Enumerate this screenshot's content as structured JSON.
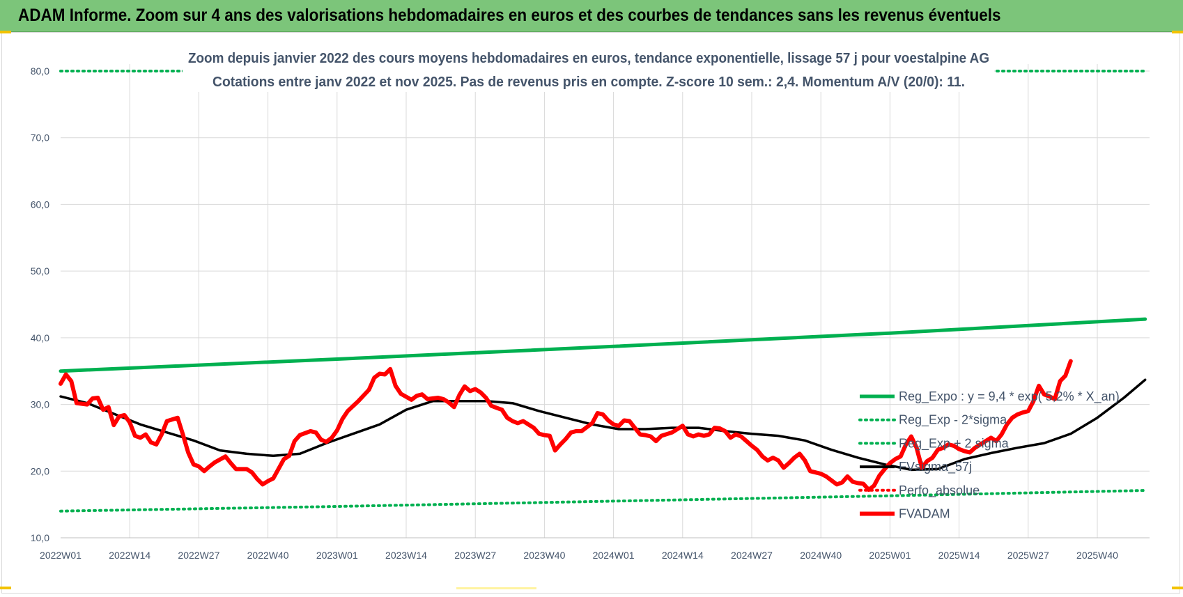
{
  "header": {
    "title": "ADAM Informe. Zoom sur 4 ans des valorisations hebdomadaires en euros et des courbes de tendances sans les revenus éventuels"
  },
  "colors": {
    "header_bg": "#7cc57a",
    "reg_expo": "#00b050",
    "price": "#ff0000",
    "smooth": "#000000",
    "text": "#44546a",
    "grid": "#d9d9d9"
  },
  "chart_data": {
    "type": "line",
    "title_lines": [
      "Zoom depuis janvier 2022 des cours moyens hebdomadaires en euros, tendance exponentielle, lissage 57 j pour voestalpine AG",
      "Cotations entre janv 2022 et nov 2025. Pas de revenus pris en compte. Z-score 10 sem.: 2,4. Momentum A/V (20/0): 11."
    ],
    "ylim": [
      10,
      80
    ],
    "yticks": [
      "10,0",
      "20,0",
      "30,0",
      "40,0",
      "50,0",
      "60,0",
      "70,0",
      "80,0"
    ],
    "xticks": [
      "2022W01",
      "2022W14",
      "2022W27",
      "2022W40",
      "2023W01",
      "2023W14",
      "2023W27",
      "2023W40",
      "2024W01",
      "2024W14",
      "2024W27",
      "2024W40",
      "2025W01",
      "2025W14",
      "2025W27",
      "2025W40"
    ],
    "x_range_weeks": [
      0,
      204
    ],
    "grid": true,
    "legend_position": "right",
    "series": [
      {
        "name": "Reg_Expo : y = 9,4 * exp( 5,2% * X_an)",
        "style": "solid",
        "color": "#00b050",
        "points": [
          [
            0,
            35.0
          ],
          [
            52,
            36.8
          ],
          [
            104,
            38.7
          ],
          [
            156,
            40.7
          ],
          [
            204,
            42.8
          ]
        ]
      },
      {
        "name": "Reg_Exp - 2*sigma",
        "style": "dotted",
        "color": "#00b050",
        "points": [
          [
            0,
            14.0
          ],
          [
            52,
            14.7
          ],
          [
            104,
            15.5
          ],
          [
            156,
            16.3
          ],
          [
            204,
            17.1
          ]
        ]
      },
      {
        "name": "Reg_Exp + 2 sigma",
        "style": "dotted",
        "color": "#00b050",
        "points": [
          [
            0,
            80.0
          ],
          [
            23,
            80.0
          ],
          [
            176,
            80.0
          ],
          [
            204,
            80.0
          ]
        ]
      },
      {
        "name": "FVsigma_57j",
        "style": "solid",
        "color": "#000000",
        "points": [
          [
            0,
            31.2
          ],
          [
            5,
            30.2
          ],
          [
            10,
            28.6
          ],
          [
            15,
            27.0
          ],
          [
            20,
            25.8
          ],
          [
            25,
            24.6
          ],
          [
            30,
            23.1
          ],
          [
            35,
            22.6
          ],
          [
            40,
            22.3
          ],
          [
            45,
            22.6
          ],
          [
            50,
            24.2
          ],
          [
            55,
            25.6
          ],
          [
            60,
            27.0
          ],
          [
            65,
            29.2
          ],
          [
            70,
            30.5
          ],
          [
            75,
            30.5
          ],
          [
            80,
            30.5
          ],
          [
            85,
            30.2
          ],
          [
            90,
            29.0
          ],
          [
            95,
            28.0
          ],
          [
            100,
            27.0
          ],
          [
            105,
            26.3
          ],
          [
            110,
            26.3
          ],
          [
            115,
            26.5
          ],
          [
            120,
            26.5
          ],
          [
            125,
            26.0
          ],
          [
            130,
            25.6
          ],
          [
            135,
            25.3
          ],
          [
            140,
            24.6
          ],
          [
            145,
            23.2
          ],
          [
            150,
            22.0
          ],
          [
            155,
            21.0
          ],
          [
            160,
            20.2
          ],
          [
            165,
            20.3
          ],
          [
            170,
            21.8
          ],
          [
            175,
            22.7
          ],
          [
            180,
            23.5
          ],
          [
            185,
            24.2
          ],
          [
            190,
            25.6
          ],
          [
            195,
            28.0
          ],
          [
            200,
            31.0
          ],
          [
            204,
            33.7
          ]
        ]
      },
      {
        "name": "Perfo_absolue",
        "style": "dotted",
        "color": "#ff0000",
        "points": []
      },
      {
        "name": "FVADAM",
        "style": "solid",
        "color": "#ff0000",
        "points": [
          [
            0,
            33.1
          ],
          [
            1,
            34.5
          ],
          [
            2,
            33.5
          ],
          [
            3,
            30.2
          ],
          [
            5,
            30.0
          ],
          [
            6,
            30.9
          ],
          [
            7,
            31.0
          ],
          [
            8,
            29.2
          ],
          [
            9,
            29.6
          ],
          [
            10,
            26.9
          ],
          [
            11,
            28.2
          ],
          [
            12,
            28.4
          ],
          [
            13,
            27.3
          ],
          [
            14,
            25.3
          ],
          [
            15,
            25.0
          ],
          [
            16,
            25.5
          ],
          [
            17,
            24.3
          ],
          [
            18,
            24.0
          ],
          [
            19,
            25.5
          ],
          [
            20,
            27.5
          ],
          [
            22,
            28.0
          ],
          [
            23,
            25.5
          ],
          [
            24,
            22.8
          ],
          [
            25,
            21.0
          ],
          [
            26,
            20.7
          ],
          [
            27,
            20.0
          ],
          [
            28,
            20.7
          ],
          [
            29,
            21.3
          ],
          [
            31,
            22.2
          ],
          [
            32,
            21.2
          ],
          [
            33,
            20.3
          ],
          [
            35,
            20.3
          ],
          [
            36,
            19.8
          ],
          [
            37,
            18.8
          ],
          [
            38,
            18.0
          ],
          [
            39,
            18.5
          ],
          [
            40,
            18.9
          ],
          [
            42,
            21.8
          ],
          [
            43,
            22.3
          ],
          [
            44,
            24.5
          ],
          [
            45,
            25.4
          ],
          [
            47,
            26.0
          ],
          [
            48,
            25.8
          ],
          [
            49,
            24.7
          ],
          [
            50,
            24.4
          ],
          [
            51,
            25.0
          ],
          [
            52,
            26.1
          ],
          [
            53,
            27.8
          ],
          [
            54,
            29.0
          ],
          [
            56,
            30.5
          ],
          [
            58,
            32.2
          ],
          [
            59,
            34.0
          ],
          [
            60,
            34.6
          ],
          [
            61,
            34.5
          ],
          [
            62,
            35.3
          ],
          [
            63,
            32.8
          ],
          [
            64,
            31.6
          ],
          [
            66,
            30.7
          ],
          [
            67,
            31.3
          ],
          [
            68,
            31.5
          ],
          [
            69,
            30.8
          ],
          [
            71,
            31.0
          ],
          [
            72,
            30.8
          ],
          [
            73,
            30.3
          ],
          [
            74,
            29.6
          ],
          [
            75,
            31.4
          ],
          [
            76,
            32.7
          ],
          [
            77,
            32.0
          ],
          [
            78,
            32.3
          ],
          [
            79,
            31.8
          ],
          [
            80,
            31.0
          ],
          [
            81,
            29.8
          ],
          [
            82,
            29.5
          ],
          [
            83,
            29.2
          ],
          [
            84,
            28.0
          ],
          [
            85,
            27.5
          ],
          [
            86,
            27.2
          ],
          [
            87,
            27.5
          ],
          [
            88,
            27.0
          ],
          [
            89,
            26.5
          ],
          [
            90,
            25.6
          ],
          [
            91,
            25.4
          ],
          [
            92,
            25.3
          ],
          [
            93,
            23.1
          ],
          [
            94,
            24.0
          ],
          [
            95,
            24.8
          ],
          [
            96,
            25.8
          ],
          [
            97,
            26.0
          ],
          [
            98,
            26.0
          ],
          [
            99,
            26.6
          ],
          [
            100,
            27.2
          ],
          [
            101,
            28.7
          ],
          [
            102,
            28.5
          ],
          [
            103,
            27.6
          ],
          [
            104,
            27.0
          ],
          [
            105,
            26.8
          ],
          [
            106,
            27.6
          ],
          [
            107,
            27.5
          ],
          [
            108,
            26.5
          ],
          [
            109,
            25.5
          ],
          [
            110,
            25.4
          ],
          [
            111,
            25.2
          ],
          [
            112,
            24.5
          ],
          [
            113,
            25.3
          ],
          [
            115,
            25.8
          ],
          [
            117,
            26.8
          ],
          [
            118,
            25.5
          ],
          [
            119,
            25.2
          ],
          [
            120,
            25.5
          ],
          [
            121,
            25.3
          ],
          [
            122,
            25.5
          ],
          [
            123,
            26.5
          ],
          [
            124,
            26.4
          ],
          [
            125,
            26.0
          ],
          [
            126,
            25.0
          ],
          [
            127,
            25.5
          ],
          [
            128,
            25.2
          ],
          [
            129,
            24.5
          ],
          [
            130,
            23.8
          ],
          [
            131,
            23.2
          ],
          [
            132,
            22.2
          ],
          [
            133,
            21.6
          ],
          [
            134,
            22.0
          ],
          [
            135,
            21.6
          ],
          [
            136,
            20.5
          ],
          [
            137,
            21.2
          ],
          [
            138,
            22.0
          ],
          [
            139,
            22.6
          ],
          [
            140,
            21.6
          ],
          [
            141,
            20.0
          ],
          [
            142,
            19.8
          ],
          [
            143,
            19.6
          ],
          [
            144,
            19.2
          ],
          [
            145,
            18.6
          ],
          [
            146,
            18.0
          ],
          [
            147,
            18.3
          ],
          [
            148,
            19.2
          ],
          [
            149,
            18.4
          ],
          [
            150,
            18.2
          ],
          [
            151,
            18.1
          ],
          [
            152,
            17.2
          ],
          [
            153,
            17.8
          ],
          [
            154,
            19.3
          ],
          [
            155,
            20.3
          ],
          [
            156,
            21.2
          ],
          [
            157,
            21.8
          ],
          [
            158,
            22.2
          ],
          [
            159,
            24.0
          ],
          [
            160,
            25.2
          ],
          [
            161,
            23.5
          ],
          [
            162,
            20.5
          ],
          [
            163,
            21.5
          ],
          [
            164,
            22.0
          ],
          [
            165,
            23.2
          ],
          [
            166,
            23.5
          ],
          [
            167,
            24.0
          ],
          [
            168,
            23.8
          ],
          [
            169,
            23.3
          ],
          [
            170,
            23.0
          ],
          [
            171,
            22.8
          ],
          [
            172,
            23.5
          ],
          [
            173,
            24.0
          ],
          [
            174,
            24.5
          ],
          [
            175,
            25.0
          ],
          [
            176,
            24.5
          ],
          [
            177,
            25.5
          ],
          [
            178,
            27.0
          ],
          [
            179,
            28.0
          ],
          [
            180,
            28.5
          ],
          [
            181,
            28.8
          ],
          [
            182,
            29.0
          ],
          [
            183,
            30.5
          ],
          [
            184,
            32.8
          ],
          [
            185,
            31.5
          ],
          [
            186,
            31.2
          ],
          [
            187,
            30.8
          ],
          [
            188,
            33.5
          ],
          [
            189,
            34.3
          ],
          [
            190,
            36.5
          ]
        ]
      }
    ]
  }
}
